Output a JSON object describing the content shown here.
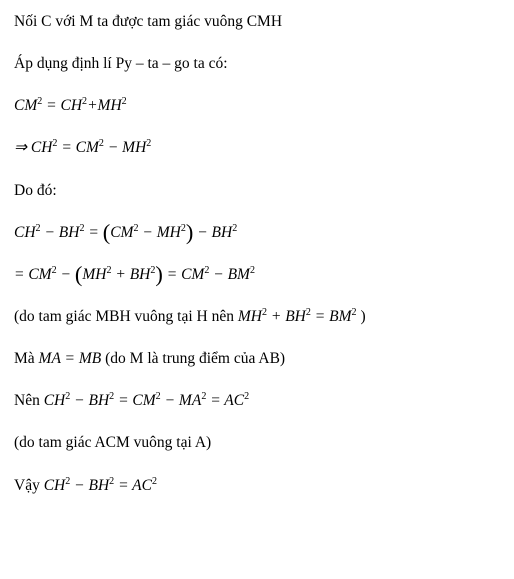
{
  "l1": "Nối C với M ta được tam giác vuông CMH",
  "l2": "Áp dụng định lí Py – ta – go ta có:",
  "f1_a": "CM",
  "f1_b": "CH",
  "f1_c": "MH",
  "f2_a": "CH",
  "f2_b": "CM",
  "f2_c": "MH",
  "l3": "Do đó:",
  "f3_a": "CH",
  "f3_b": "BH",
  "f3_c": "CM",
  "f3_d": "MH",
  "f3_e": "BH",
  "f4_a": "CM",
  "f4_b": "MH",
  "f4_c": "BH",
  "f4_d": "CM",
  "f4_e": "BM",
  "l4_pre": "(do tam giác MBH vuông tại H nên ",
  "f5_a": "MH",
  "f5_b": "BH",
  "f5_c": "BM",
  "l4_post": " )",
  "l5_pre": "Mà ",
  "f6_a": "MA",
  "f6_b": "MB",
  "l5_post": " (do M là trung điểm của AB)",
  "l6_pre": "Nên ",
  "f7_a": "CH",
  "f7_b": "BH",
  "f7_c": "CM",
  "f7_d": "MA",
  "f7_e": "AC",
  "l7": "(do tam giác ACM vuông tại A)",
  "l8_pre": "Vậy ",
  "f8_a": "CH",
  "f8_b": "BH",
  "f8_c": "AC",
  "sq": "2",
  "eq": " = ",
  "plus": "+",
  "minus": " − ",
  "minus2": " – ",
  "imply": "⇒ ",
  "lp": "(",
  "rp": ")"
}
